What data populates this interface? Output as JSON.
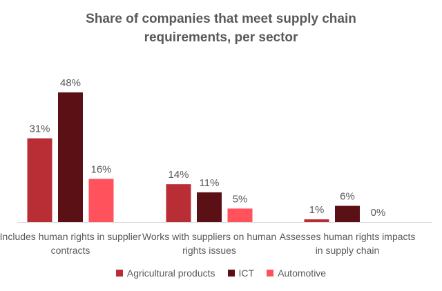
{
  "chart_data": {
    "type": "bar",
    "title": "Share of companies that meet supply chain requirements, per sector",
    "categories": [
      "Includes human rights in supplier contracts",
      "Works with suppliers on human rights issues",
      "Assesses human rights impacts in supply chain"
    ],
    "series": [
      {
        "name": "Agricultural products",
        "values": [
          31,
          14,
          1
        ],
        "labels": [
          "31%",
          "14%",
          "1%"
        ],
        "color": "#B92D35"
      },
      {
        "name": "ICT",
        "values": [
          48,
          11,
          6
        ],
        "labels": [
          "48%",
          "11%",
          "6%"
        ],
        "color": "#5A1015"
      },
      {
        "name": "Automotive",
        "values": [
          16,
          5,
          0
        ],
        "labels": [
          "16%",
          "5%",
          "0%"
        ],
        "color": "#FF525D"
      }
    ],
    "ylim": [
      0,
      50
    ],
    "value_unit": "%",
    "grid": false,
    "legend_position": "bottom",
    "y_axis_visible": false
  }
}
